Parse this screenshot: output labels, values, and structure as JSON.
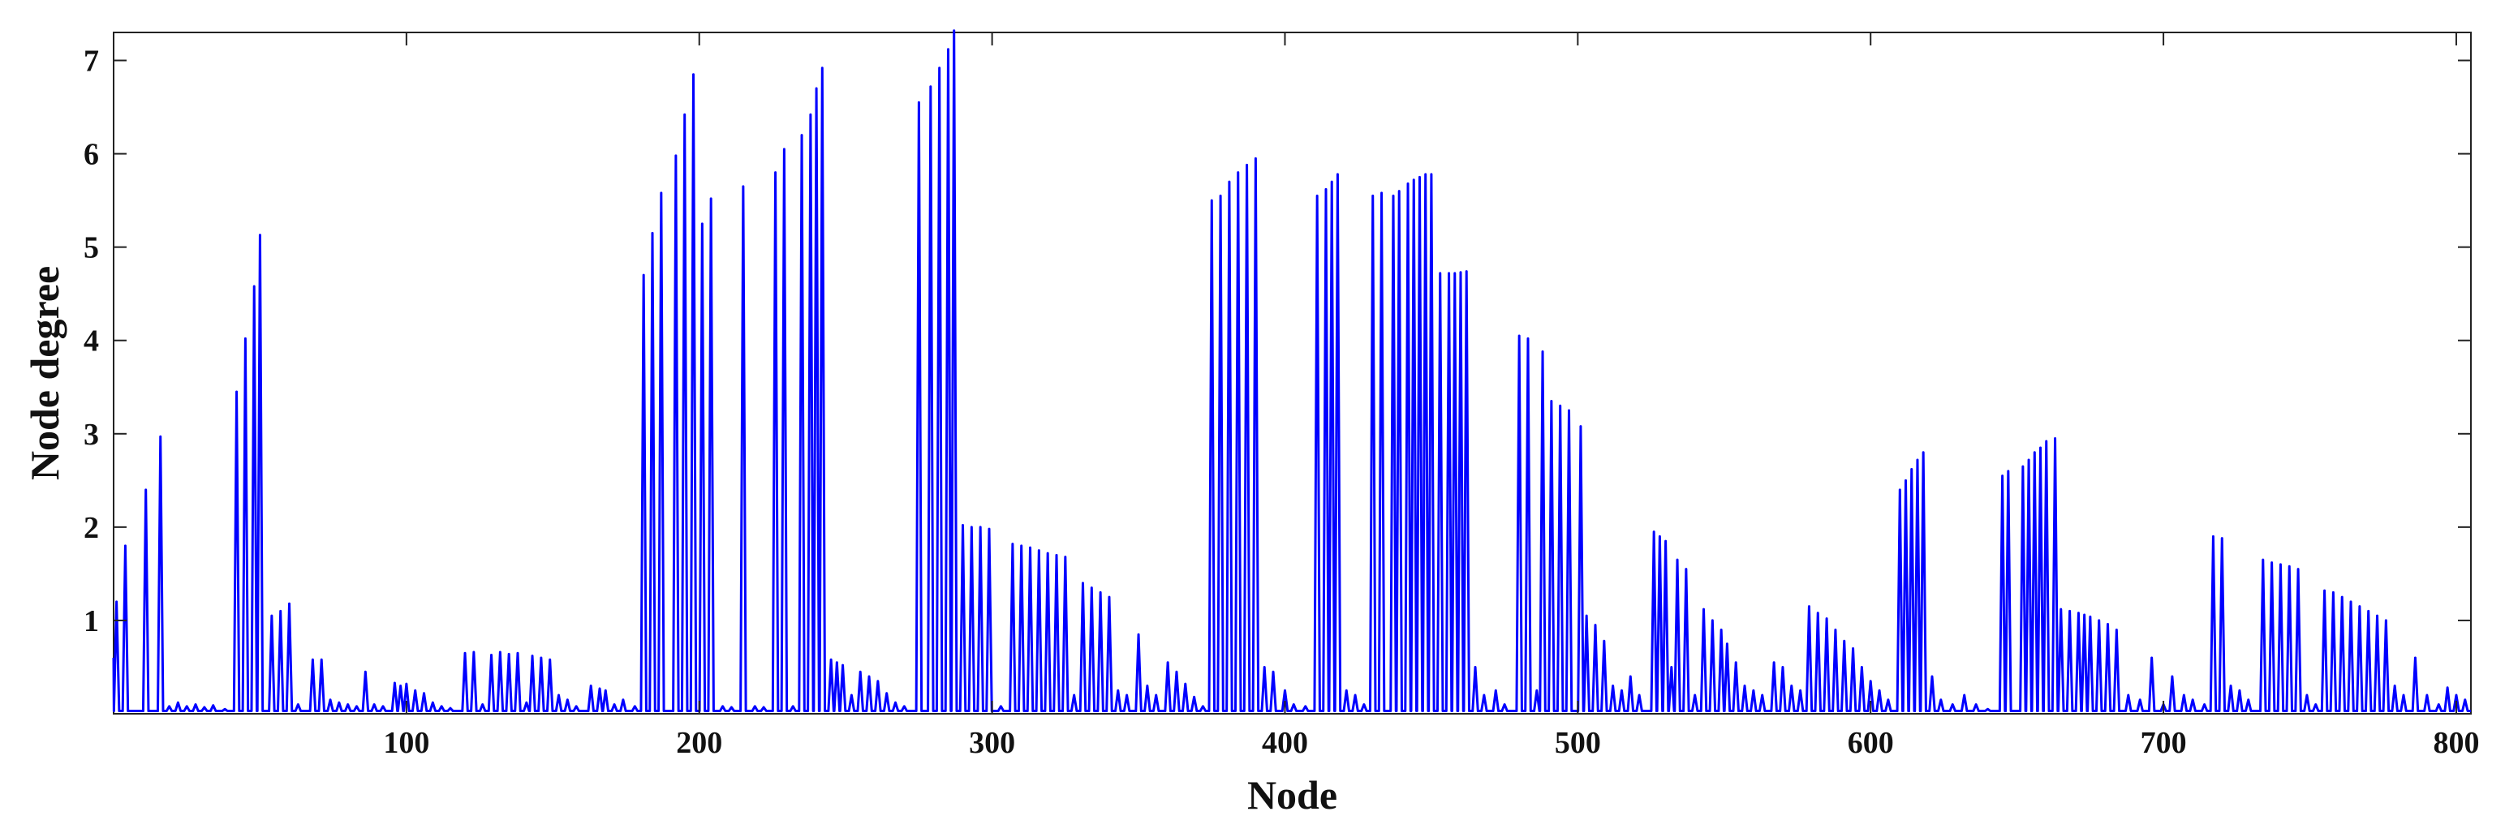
{
  "chart_data": {
    "type": "line",
    "title": "",
    "xlabel": "Node",
    "ylabel": "Node degree",
    "xlim": [
      0,
      805
    ],
    "ylim": [
      0,
      7.3
    ],
    "xticks": [
      100,
      200,
      300,
      400,
      500,
      600,
      700,
      800
    ],
    "yticks": [
      1,
      2,
      3,
      4,
      5,
      6,
      7
    ],
    "grid": false,
    "legend": "none",
    "series": [
      {
        "color": "#0000ff",
        "peaks": [
          [
            1,
            1.2
          ],
          [
            4,
            1.8
          ],
          [
            11,
            2.4
          ],
          [
            16,
            2.97
          ],
          [
            19,
            0.08
          ],
          [
            22,
            0.12
          ],
          [
            25,
            0.08
          ],
          [
            28,
            0.1
          ],
          [
            31,
            0.07
          ],
          [
            34,
            0.09
          ],
          [
            38,
            0.05
          ],
          [
            42,
            3.45
          ],
          [
            45,
            4.02
          ],
          [
            48,
            4.58
          ],
          [
            50,
            5.13
          ],
          [
            54,
            1.05
          ],
          [
            57,
            1.1
          ],
          [
            60,
            1.18
          ],
          [
            63,
            0.1
          ],
          [
            68,
            0.58
          ],
          [
            71,
            0.58
          ],
          [
            74,
            0.15
          ],
          [
            77,
            0.12
          ],
          [
            80,
            0.1
          ],
          [
            83,
            0.08
          ],
          [
            86,
            0.45
          ],
          [
            89,
            0.1
          ],
          [
            92,
            0.08
          ],
          [
            96,
            0.33
          ],
          [
            98,
            0.3
          ],
          [
            100,
            0.32
          ],
          [
            103,
            0.25
          ],
          [
            106,
            0.22
          ],
          [
            109,
            0.12
          ],
          [
            112,
            0.08
          ],
          [
            115,
            0.06
          ],
          [
            120,
            0.65
          ],
          [
            123,
            0.66
          ],
          [
            126,
            0.1
          ],
          [
            129,
            0.63
          ],
          [
            132,
            0.66
          ],
          [
            135,
            0.64
          ],
          [
            138,
            0.65
          ],
          [
            141,
            0.12
          ],
          [
            143,
            0.62
          ],
          [
            146,
            0.6
          ],
          [
            149,
            0.58
          ],
          [
            152,
            0.2
          ],
          [
            155,
            0.15
          ],
          [
            158,
            0.08
          ],
          [
            163,
            0.3
          ],
          [
            166,
            0.27
          ],
          [
            168,
            0.25
          ],
          [
            171,
            0.1
          ],
          [
            174,
            0.15
          ],
          [
            178,
            0.08
          ],
          [
            181,
            4.7
          ],
          [
            184,
            5.15
          ],
          [
            187,
            5.58
          ],
          [
            192,
            5.98
          ],
          [
            195,
            6.42
          ],
          [
            198,
            6.85
          ],
          [
            201,
            5.25
          ],
          [
            204,
            5.52
          ],
          [
            208,
            0.08
          ],
          [
            211,
            0.07
          ],
          [
            215,
            5.65
          ],
          [
            219,
            0.08
          ],
          [
            222,
            0.07
          ],
          [
            226,
            5.8
          ],
          [
            229,
            6.05
          ],
          [
            232,
            0.08
          ],
          [
            235,
            6.2
          ],
          [
            238,
            6.42
          ],
          [
            240,
            6.7
          ],
          [
            242,
            6.92
          ],
          [
            245,
            0.58
          ],
          [
            247,
            0.55
          ],
          [
            249,
            0.52
          ],
          [
            252,
            0.2
          ],
          [
            255,
            0.45
          ],
          [
            258,
            0.4
          ],
          [
            261,
            0.35
          ],
          [
            264,
            0.22
          ],
          [
            267,
            0.12
          ],
          [
            270,
            0.08
          ],
          [
            275,
            6.55
          ],
          [
            279,
            6.72
          ],
          [
            282,
            6.92
          ],
          [
            285,
            7.12
          ],
          [
            287,
            7.32
          ],
          [
            290,
            2.02
          ],
          [
            293,
            2.0
          ],
          [
            296,
            2.0
          ],
          [
            299,
            1.98
          ],
          [
            303,
            0.08
          ],
          [
            307,
            1.82
          ],
          [
            310,
            1.8
          ],
          [
            313,
            1.78
          ],
          [
            316,
            1.75
          ],
          [
            319,
            1.72
          ],
          [
            322,
            1.7
          ],
          [
            325,
            1.68
          ],
          [
            328,
            0.2
          ],
          [
            331,
            1.4
          ],
          [
            334,
            1.35
          ],
          [
            337,
            1.3
          ],
          [
            340,
            1.25
          ],
          [
            343,
            0.25
          ],
          [
            346,
            0.2
          ],
          [
            350,
            0.85
          ],
          [
            353,
            0.3
          ],
          [
            356,
            0.2
          ],
          [
            360,
            0.55
          ],
          [
            363,
            0.45
          ],
          [
            366,
            0.32
          ],
          [
            369,
            0.18
          ],
          [
            372,
            0.08
          ],
          [
            375,
            5.5
          ],
          [
            378,
            5.55
          ],
          [
            381,
            5.7
          ],
          [
            384,
            5.8
          ],
          [
            387,
            5.88
          ],
          [
            390,
            5.95
          ],
          [
            393,
            0.5
          ],
          [
            396,
            0.45
          ],
          [
            400,
            0.25
          ],
          [
            403,
            0.1
          ],
          [
            407,
            0.08
          ],
          [
            411,
            5.55
          ],
          [
            414,
            5.62
          ],
          [
            416,
            5.7
          ],
          [
            418,
            5.78
          ],
          [
            421,
            0.25
          ],
          [
            424,
            0.2
          ],
          [
            427,
            0.1
          ],
          [
            430,
            5.55
          ],
          [
            433,
            5.58
          ],
          [
            437,
            5.55
          ],
          [
            439,
            5.6
          ],
          [
            442,
            5.68
          ],
          [
            444,
            5.72
          ],
          [
            446,
            5.75
          ],
          [
            448,
            5.78
          ],
          [
            450,
            5.78
          ],
          [
            453,
            4.72
          ],
          [
            456,
            4.72
          ],
          [
            458,
            4.72
          ],
          [
            460,
            4.73
          ],
          [
            462,
            4.74
          ],
          [
            465,
            0.5
          ],
          [
            468,
            0.2
          ],
          [
            472,
            0.25
          ],
          [
            475,
            0.1
          ],
          [
            480,
            4.05
          ],
          [
            483,
            4.02
          ],
          [
            486,
            0.25
          ],
          [
            488,
            3.88
          ],
          [
            491,
            3.35
          ],
          [
            494,
            3.3
          ],
          [
            497,
            3.25
          ],
          [
            501,
            3.08
          ],
          [
            503,
            1.05
          ],
          [
            506,
            0.95
          ],
          [
            509,
            0.78
          ],
          [
            512,
            0.3
          ],
          [
            515,
            0.25
          ],
          [
            518,
            0.4
          ],
          [
            521,
            0.2
          ],
          [
            526,
            1.95
          ],
          [
            528,
            1.9
          ],
          [
            530,
            1.85
          ],
          [
            532,
            0.5
          ],
          [
            534,
            1.65
          ],
          [
            537,
            1.55
          ],
          [
            540,
            0.2
          ],
          [
            543,
            1.12
          ],
          [
            546,
            1.0
          ],
          [
            549,
            0.9
          ],
          [
            551,
            0.75
          ],
          [
            554,
            0.55
          ],
          [
            557,
            0.3
          ],
          [
            560,
            0.25
          ],
          [
            563,
            0.2
          ],
          [
            567,
            0.55
          ],
          [
            570,
            0.5
          ],
          [
            573,
            0.3
          ],
          [
            576,
            0.25
          ],
          [
            579,
            1.15
          ],
          [
            582,
            1.08
          ],
          [
            585,
            1.02
          ],
          [
            588,
            0.9
          ],
          [
            591,
            0.78
          ],
          [
            594,
            0.7
          ],
          [
            597,
            0.5
          ],
          [
            600,
            0.35
          ],
          [
            603,
            0.25
          ],
          [
            606,
            0.15
          ],
          [
            610,
            2.4
          ],
          [
            612,
            2.5
          ],
          [
            614,
            2.62
          ],
          [
            616,
            2.72
          ],
          [
            618,
            2.8
          ],
          [
            621,
            0.4
          ],
          [
            624,
            0.15
          ],
          [
            628,
            0.1
          ],
          [
            632,
            0.2
          ],
          [
            636,
            0.1
          ],
          [
            640,
            0.05
          ],
          [
            645,
            2.55
          ],
          [
            647,
            2.6
          ],
          [
            652,
            2.65
          ],
          [
            654,
            2.72
          ],
          [
            656,
            2.8
          ],
          [
            658,
            2.85
          ],
          [
            660,
            2.92
          ],
          [
            663,
            2.95
          ],
          [
            665,
            1.12
          ],
          [
            668,
            1.1
          ],
          [
            671,
            1.08
          ],
          [
            673,
            1.06
          ],
          [
            675,
            1.04
          ],
          [
            678,
            1.0
          ],
          [
            681,
            0.96
          ],
          [
            684,
            0.9
          ],
          [
            688,
            0.2
          ],
          [
            692,
            0.15
          ],
          [
            696,
            0.6
          ],
          [
            700,
            0.1
          ],
          [
            703,
            0.4
          ],
          [
            707,
            0.2
          ],
          [
            710,
            0.15
          ],
          [
            714,
            0.1
          ],
          [
            717,
            1.9
          ],
          [
            720,
            1.88
          ],
          [
            723,
            0.3
          ],
          [
            726,
            0.25
          ],
          [
            729,
            0.15
          ],
          [
            734,
            1.65
          ],
          [
            737,
            1.62
          ],
          [
            740,
            1.6
          ],
          [
            743,
            1.58
          ],
          [
            746,
            1.55
          ],
          [
            749,
            0.2
          ],
          [
            752,
            0.1
          ],
          [
            755,
            1.32
          ],
          [
            758,
            1.3
          ],
          [
            761,
            1.25
          ],
          [
            764,
            1.2
          ],
          [
            767,
            1.15
          ],
          [
            770,
            1.1
          ],
          [
            773,
            1.05
          ],
          [
            776,
            1.0
          ],
          [
            779,
            0.3
          ],
          [
            782,
            0.2
          ],
          [
            786,
            0.6
          ],
          [
            790,
            0.2
          ],
          [
            794,
            0.1
          ],
          [
            797,
            0.28
          ],
          [
            800,
            0.2
          ],
          [
            803,
            0.15
          ]
        ]
      }
    ]
  }
}
